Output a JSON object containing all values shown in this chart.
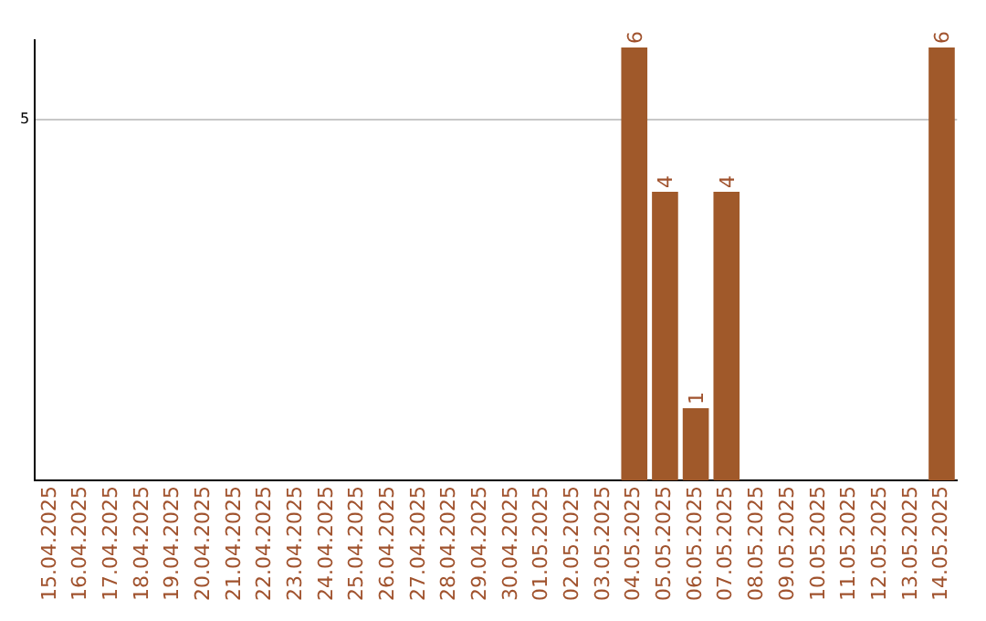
{
  "chart_data": {
    "type": "bar",
    "categories": [
      "15.04.2025",
      "16.04.2025",
      "17.04.2025",
      "18.04.2025",
      "19.04.2025",
      "20.04.2025",
      "21.04.2025",
      "22.04.2025",
      "23.04.2025",
      "24.04.2025",
      "25.04.2025",
      "26.04.2025",
      "27.04.2025",
      "28.04.2025",
      "29.04.2025",
      "30.04.2025",
      "01.05.2025",
      "02.05.2025",
      "03.05.2025",
      "04.05.2025",
      "05.05.2025",
      "06.05.2025",
      "07.05.2025",
      "08.05.2025",
      "09.05.2025",
      "10.05.2025",
      "11.05.2025",
      "12.05.2025",
      "13.05.2025",
      "14.05.2025"
    ],
    "values": [
      null,
      null,
      null,
      null,
      null,
      null,
      null,
      null,
      null,
      null,
      null,
      null,
      null,
      null,
      null,
      null,
      null,
      null,
      null,
      6,
      4,
      1,
      4,
      null,
      null,
      null,
      null,
      null,
      null,
      6
    ],
    "color": "#a0592a",
    "ylim": [
      0,
      6.1
    ],
    "yticks": [
      5
    ],
    "grid": "y",
    "data_labels": true,
    "legend": false
  }
}
